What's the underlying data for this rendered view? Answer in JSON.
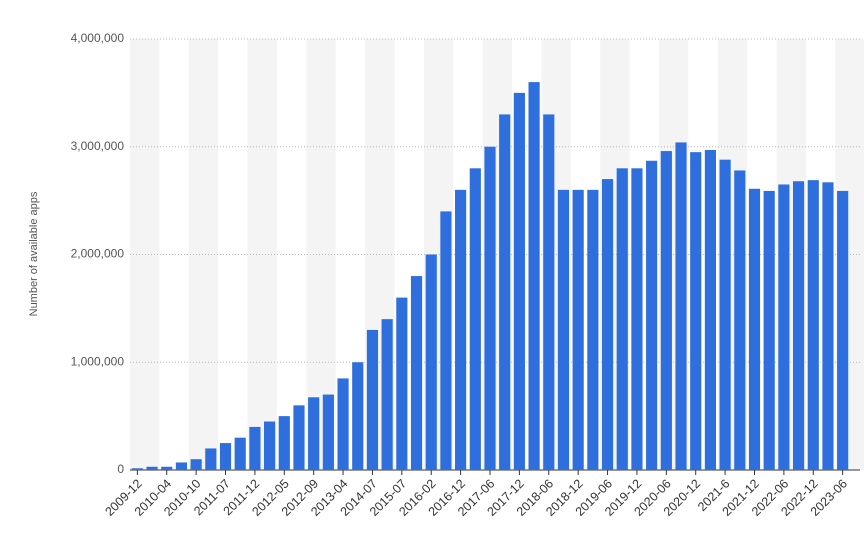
{
  "chart_data": {
    "type": "bar",
    "y_label": "Number of available apps",
    "categories": [
      "2009-12",
      null,
      "2010-04",
      null,
      "2010-10",
      null,
      "2011-07",
      null,
      "2011-12",
      null,
      "2012-05",
      null,
      "2012-09",
      null,
      "2013-04",
      null,
      "2014-07",
      null,
      "2015-07",
      null,
      "2016-02",
      null,
      "2016-12",
      null,
      "2017-06",
      null,
      "2017-12",
      null,
      "2018-06",
      null,
      "2018-12",
      null,
      "2019-06",
      null,
      "2019-12",
      null,
      "2020-06",
      null,
      "2020-12",
      null,
      "2021-6",
      null,
      "2021-12",
      null,
      "2022-06",
      null,
      "2022-12",
      null,
      "2023-06"
    ],
    "values": [
      16000,
      30000,
      30000,
      70000,
      100000,
      200000,
      250000,
      300000,
      400000,
      450000,
      500000,
      600000,
      675000,
      700000,
      850000,
      1000000,
      1300000,
      1400000,
      1600000,
      1800000,
      2000000,
      2400000,
      2600000,
      2800000,
      3000000,
      3300000,
      3500000,
      3600000,
      3300000,
      2600000,
      2600000,
      2600000,
      2700000,
      2800000,
      2800000,
      2870000,
      2960000,
      3040000,
      2950000,
      2970000,
      2880000,
      2780000,
      2610000,
      2590000,
      2650000,
      2680000,
      2690000,
      2670000,
      2590000
    ],
    "color": "#2f6fdd",
    "ylim": [
      0,
      4000000
    ],
    "yticks": [
      0,
      {
        "value": 1000000,
        "label": "1,000,000"
      },
      {
        "value": 2000000,
        "label": "2,000,000"
      },
      {
        "value": 3000000,
        "label": "3,000,000"
      },
      {
        "value": 4000000,
        "label": "4,000,000"
      }
    ],
    "grid": true
  }
}
